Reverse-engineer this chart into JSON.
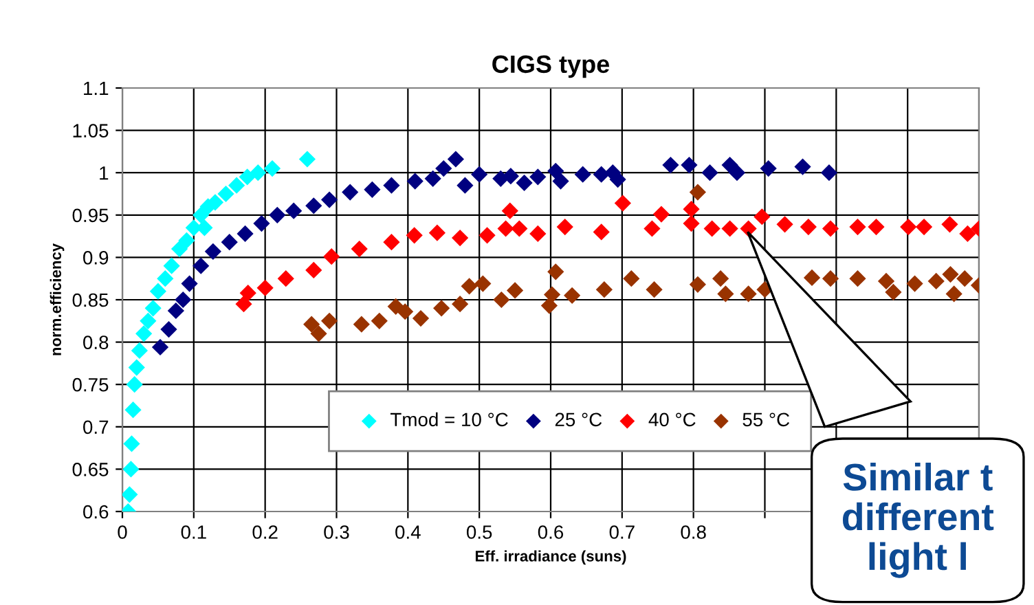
{
  "chart_data": {
    "type": "scatter",
    "title": "CIGS type",
    "xlabel": "Eff. irradiance (suns)",
    "ylabel": "norm.efficiency",
    "xlim": [
      0,
      1.2
    ],
    "ylim": [
      0.6,
      1.1
    ],
    "xticks": [
      0,
      0.1,
      0.2,
      0.3,
      0.4,
      0.5,
      0.6,
      0.7,
      0.8,
      {
        "value": 0.9,
        "label": null
      },
      {
        "value": 1.0,
        "label": null
      },
      {
        "value": 1.1,
        "label": null
      },
      {
        "value": 1.2,
        "label": null
      }
    ],
    "yticks": [
      0.6,
      0.65,
      0.7,
      0.75,
      0.8,
      0.85,
      0.9,
      0.95,
      1,
      1.05,
      1.1
    ],
    "grid": true,
    "legend": "bottom",
    "marker": "diamond",
    "series": [
      {
        "name": "Tmod = 10 °C",
        "color": "#00ffff",
        "x": [
          0.008,
          0.01,
          0.012,
          0.013,
          0.015,
          0.017,
          0.02,
          0.024,
          0.03,
          0.036,
          0.043,
          0.05,
          0.06,
          0.069,
          0.08,
          0.09,
          0.1,
          0.11,
          0.115,
          0.12,
          0.13,
          0.145,
          0.16,
          0.175,
          0.19,
          0.21,
          0.259
        ],
        "values": [
          0.6,
          0.62,
          0.65,
          0.68,
          0.72,
          0.75,
          0.77,
          0.79,
          0.81,
          0.825,
          0.84,
          0.86,
          0.875,
          0.89,
          0.91,
          0.92,
          0.935,
          0.95,
          0.935,
          0.96,
          0.965,
          0.975,
          0.985,
          0.995,
          1.0,
          1.005,
          1.016
        ]
      },
      {
        "name": "25 °C",
        "color": "#000080",
        "x": [
          0.053,
          0.065,
          0.075,
          0.085,
          0.094,
          0.11,
          0.127,
          0.15,
          0.172,
          0.195,
          0.217,
          0.24,
          0.268,
          0.29,
          0.319,
          0.35,
          0.377,
          0.41,
          0.435,
          0.45,
          0.467,
          0.48,
          0.5,
          0.53,
          0.544,
          0.563,
          0.582,
          0.607,
          0.614,
          0.645,
          0.671,
          0.687,
          0.694,
          0.768,
          0.794,
          0.823,
          0.851,
          0.861,
          0.905,
          0.953,
          0.99
        ],
        "values": [
          0.794,
          0.815,
          0.837,
          0.85,
          0.869,
          0.89,
          0.907,
          0.918,
          0.928,
          0.94,
          0.95,
          0.955,
          0.961,
          0.968,
          0.977,
          0.98,
          0.985,
          0.99,
          0.993,
          1.005,
          1.016,
          0.985,
          0.998,
          0.993,
          0.996,
          0.988,
          0.995,
          1.002,
          0.99,
          0.998,
          0.998,
          1.0,
          0.992,
          1.009,
          1.009,
          1.0,
          1.009,
          1.0,
          1.005,
          1.007,
          1.0
        ]
      },
      {
        "name": "40 °C",
        "color": "#ff0000",
        "x": [
          0.17,
          0.176,
          0.2,
          0.229,
          0.268,
          0.293,
          0.332,
          0.377,
          0.409,
          0.441,
          0.473,
          0.511,
          0.537,
          0.543,
          0.556,
          0.582,
          0.62,
          0.671,
          0.701,
          0.742,
          0.755,
          0.797,
          0.797,
          0.826,
          0.851,
          0.877,
          0.896,
          0.928,
          0.961,
          0.992,
          1.03,
          1.056,
          1.101,
          1.123,
          1.159,
          1.184,
          1.2
        ],
        "values": [
          0.845,
          0.858,
          0.864,
          0.875,
          0.885,
          0.901,
          0.91,
          0.918,
          0.926,
          0.929,
          0.923,
          0.926,
          0.934,
          0.955,
          0.934,
          0.928,
          0.936,
          0.93,
          0.964,
          0.934,
          0.951,
          0.957,
          0.94,
          0.934,
          0.934,
          0.934,
          0.948,
          0.939,
          0.936,
          0.934,
          0.936,
          0.936,
          0.936,
          0.936,
          0.939,
          0.928,
          0.934
        ]
      },
      {
        "name": "55 °C",
        "color": "#993300",
        "x": [
          0.265,
          0.275,
          0.29,
          0.335,
          0.36,
          0.383,
          0.396,
          0.418,
          0.447,
          0.473,
          0.486,
          0.505,
          0.531,
          0.55,
          0.598,
          0.602,
          0.607,
          0.63,
          0.675,
          0.713,
          0.745,
          0.806,
          0.806,
          0.838,
          0.845,
          0.877,
          0.9,
          0.966,
          0.992,
          1.03,
          1.07,
          1.08,
          1.11,
          1.14,
          1.16,
          1.165,
          1.18,
          1.2
        ],
        "values": [
          0.821,
          0.81,
          0.825,
          0.821,
          0.825,
          0.842,
          0.836,
          0.828,
          0.84,
          0.845,
          0.866,
          0.869,
          0.85,
          0.861,
          0.843,
          0.856,
          0.883,
          0.855,
          0.862,
          0.875,
          0.862,
          0.868,
          0.977,
          0.875,
          0.857,
          0.857,
          0.862,
          0.876,
          0.875,
          0.875,
          0.872,
          0.859,
          0.869,
          0.872,
          0.88,
          0.857,
          0.875,
          0.867
        ]
      }
    ],
    "annotations": [
      "Similar t\ndifferent\nlight l"
    ]
  }
}
